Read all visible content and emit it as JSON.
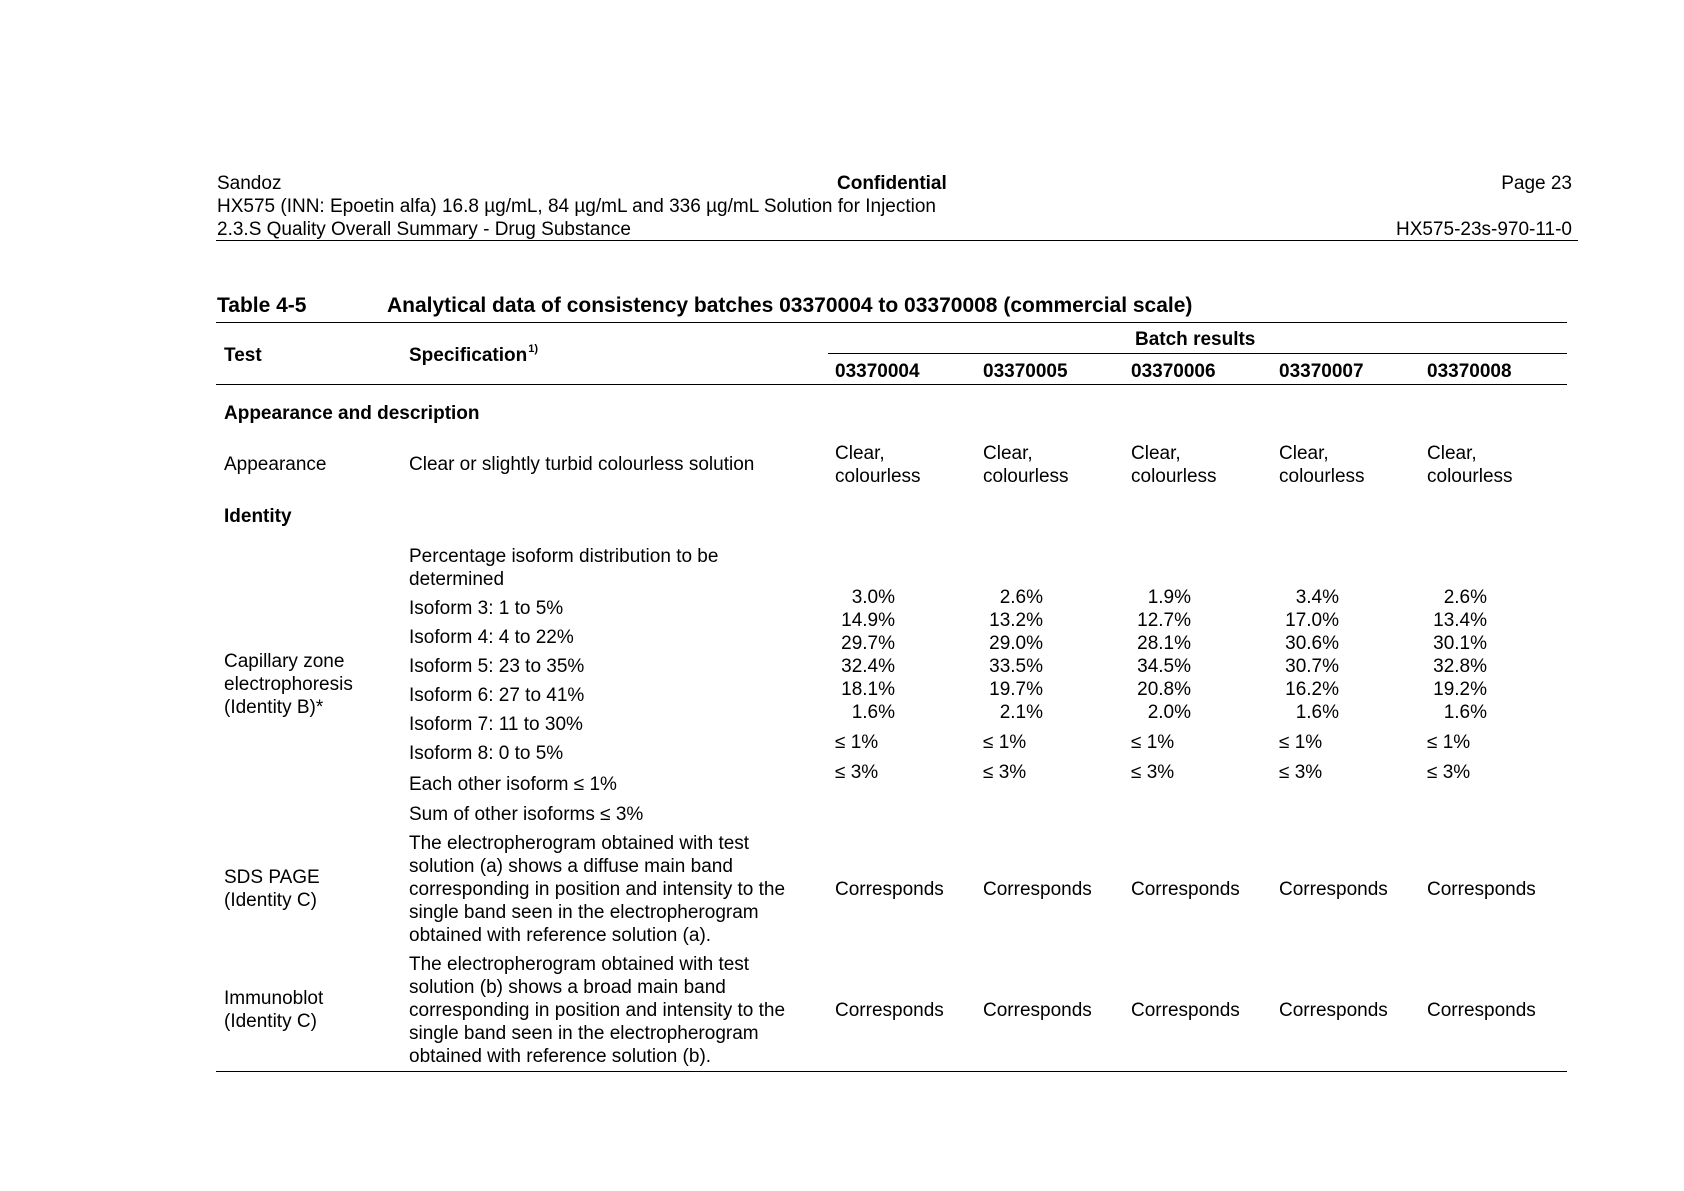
{
  "header": {
    "company": "Sandoz",
    "confidential": "Confidential",
    "page": "Page 23",
    "product": "HX575 (INN: Epoetin alfa) 16.8 µg/mL, 84 µg/mL and 336 µg/mL Solution for Injection",
    "section": "2.3.S Quality Overall Summary - Drug Substance",
    "doc_id": "HX575-23s-970-11-0"
  },
  "table": {
    "label": "Table 4-5",
    "title": "Analytical data of consistency batches 03370004 to 03370008 (commercial scale)",
    "col_test": "Test",
    "col_spec": "Specification",
    "col_spec_sup": "1)",
    "batch_results": "Batch results",
    "batches": [
      "03370004",
      "03370005",
      "03370006",
      "03370007",
      "03370008"
    ],
    "section_appearance": "Appearance and description",
    "appearance": {
      "test": "Appearance",
      "spec": "Clear or slightly turbid colourless solution",
      "results": [
        [
          "Clear,",
          "colourless"
        ],
        [
          "Clear,",
          "colourless"
        ],
        [
          "Clear,",
          "colourless"
        ],
        [
          "Clear,",
          "colourless"
        ],
        [
          "Clear,",
          "colourless"
        ]
      ]
    },
    "section_identity": "Identity",
    "cze": {
      "test": [
        "Capillary zone",
        "electrophoresis",
        "(Identity B)*"
      ],
      "spec": [
        "Percentage isoform distribution to be",
        "determined",
        "Isoform 3: 1 to 5%",
        "Isoform 4: 4 to 22%",
        "Isoform 5: 23 to 35%",
        "Isoform 6: 27 to 41%",
        "Isoform 7: 11 to 30%",
        "Isoform 8: 0 to 5%",
        "Each other isoform ≤ 1%",
        "Sum of other isoforms ≤ 3%"
      ],
      "results": [
        [
          "3.0%",
          "14.9%",
          "29.7%",
          "32.4%",
          "18.1%",
          "1.6%",
          "≤ 1%",
          "≤ 3%"
        ],
        [
          "2.6%",
          "13.2%",
          "29.0%",
          "33.5%",
          "19.7%",
          "2.1%",
          "≤ 1%",
          "≤ 3%"
        ],
        [
          "1.9%",
          "12.7%",
          "28.1%",
          "34.5%",
          "20.8%",
          "2.0%",
          "≤ 1%",
          "≤ 3%"
        ],
        [
          "3.4%",
          "17.0%",
          "30.6%",
          "30.7%",
          "16.2%",
          "1.6%",
          "≤ 1%",
          "≤ 3%"
        ],
        [
          "2.6%",
          "13.4%",
          "30.1%",
          "32.8%",
          "19.2%",
          "1.6%",
          "≤ 1%",
          "≤ 3%"
        ]
      ]
    },
    "sds": {
      "test": [
        "SDS PAGE",
        "(Identity C)"
      ],
      "spec": [
        "The electropherogram obtained with test",
        "solution (a) shows a diffuse main band",
        "corresponding in position and intensity to the",
        "single band seen in the electropherogram",
        "obtained with reference solution (a)."
      ],
      "results": [
        "Corresponds",
        "Corresponds",
        "Corresponds",
        "Corresponds",
        "Corresponds"
      ]
    },
    "immunoblot": {
      "test": [
        "Immunoblot",
        "(Identity C)"
      ],
      "spec": [
        "The electropherogram obtained with test",
        "solution (b) shows a broad main band",
        "corresponding in position and intensity to the",
        "single band seen in the electropherogram",
        "obtained with reference solution (b)."
      ],
      "results": [
        "Corresponds",
        "Corresponds",
        "Corresponds",
        "Corresponds",
        "Corresponds"
      ]
    }
  }
}
